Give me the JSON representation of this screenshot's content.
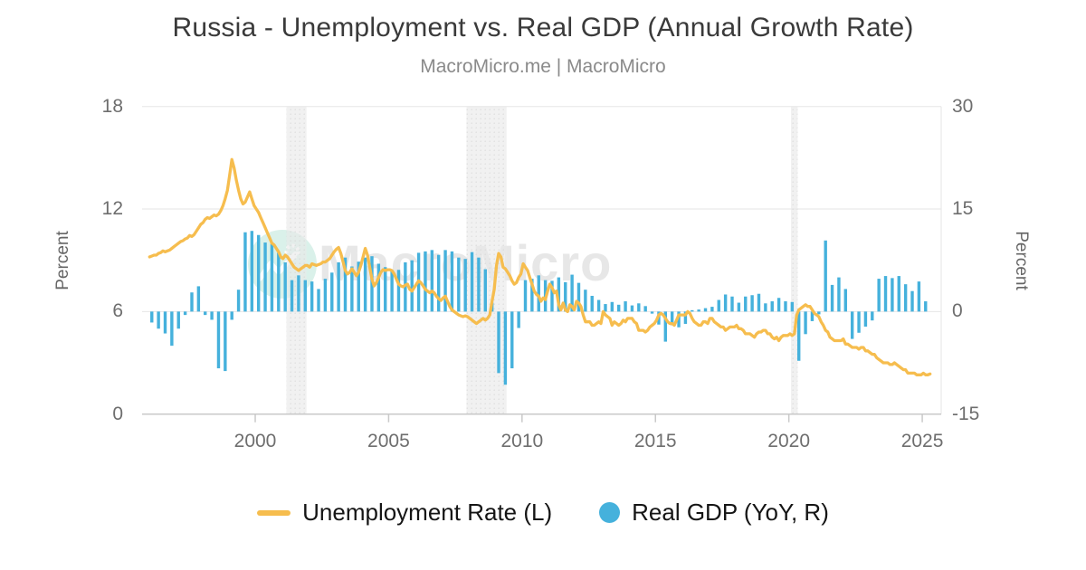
{
  "header": {
    "title": "Russia - Unemployment vs. Real GDP (Annual Growth Rate)",
    "subtitle": "MacroMicro.me | MacroMicro"
  },
  "watermark": {
    "text": "MacroMicro"
  },
  "colors": {
    "bar": "#45b1dc",
    "line": "#f6bd4e",
    "grid": "#e6e6e6",
    "axis_line": "#c9c9c9",
    "band_fill": "#e8e8e8",
    "band_dot": "#d4d4d4",
    "tick_text": "#6e6e6e",
    "title_text": "#3a3a3a",
    "subtitle_text": "#8a8a8a",
    "watermark_circle": "#daf1ea",
    "watermark_text": "#e7e7e7"
  },
  "legend": [
    {
      "label": "Unemployment Rate (L)",
      "swatch": "line",
      "color": "#f6bd4e"
    },
    {
      "label": "Real GDP (YoY, R)",
      "swatch": "circle",
      "color": "#45b1dc"
    }
  ],
  "chart_data": {
    "type": "mixed",
    "title": "Russia - Unemployment vs. Real GDP (Annual Growth Rate)",
    "x_axis": {
      "min": 1995.76,
      "max": 2025.71,
      "ticks": [
        2000,
        2005,
        2010,
        2015,
        2020,
        2025
      ]
    },
    "y_axis_left": {
      "label": "Percent",
      "min": 0,
      "max": 18,
      "ticks": [
        0,
        6,
        12,
        18
      ]
    },
    "y_axis_right": {
      "label": "Percent",
      "min": -15,
      "max": 30,
      "ticks": [
        -15,
        0,
        15,
        30
      ]
    },
    "grid": "horizontal",
    "legend_position": "bottom",
    "shaded_bands": [
      {
        "from": 2001.17,
        "to": 2001.92
      },
      {
        "from": 2007.92,
        "to": 2009.42
      },
      {
        "from": 2020.08,
        "to": 2020.33
      }
    ],
    "series": [
      {
        "name": "Unemployment Rate (L)",
        "type": "line",
        "axis": "left",
        "color": "#f6bd4e",
        "start_year": 1996,
        "points_per_year": 12,
        "values": [
          9.2,
          9.25,
          9.3,
          9.3,
          9.4,
          9.45,
          9.55,
          9.5,
          9.55,
          9.6,
          9.7,
          9.8,
          9.9,
          10.0,
          10.1,
          10.15,
          10.25,
          10.3,
          10.45,
          10.4,
          10.5,
          10.7,
          10.9,
          11.1,
          11.2,
          11.4,
          11.5,
          11.45,
          11.55,
          11.65,
          11.6,
          11.7,
          11.9,
          12.2,
          12.6,
          13.1,
          14.0,
          14.9,
          14.4,
          13.7,
          13.1,
          12.6,
          12.3,
          12.4,
          12.7,
          13.0,
          12.6,
          12.2,
          12.0,
          11.8,
          11.5,
          11.2,
          10.9,
          10.6,
          10.3,
          10.0,
          9.9,
          9.7,
          9.5,
          9.2,
          9.1,
          9.3,
          9.2,
          9.0,
          8.8,
          8.6,
          8.5,
          8.4,
          8.5,
          8.6,
          8.7,
          8.7,
          8.6,
          8.8,
          8.75,
          8.7,
          8.75,
          8.8,
          8.9,
          8.9,
          9.0,
          9.1,
          9.3,
          9.5,
          9.65,
          9.75,
          9.4,
          8.9,
          8.4,
          8.2,
          8.3,
          8.5,
          8.3,
          8.1,
          8.3,
          8.7,
          9.2,
          9.7,
          9.3,
          8.6,
          7.9,
          7.5,
          7.7,
          8.0,
          8.3,
          8.45,
          8.4,
          8.45,
          8.45,
          8.4,
          8.2,
          7.9,
          7.6,
          7.5,
          7.45,
          7.55,
          7.6,
          7.3,
          7.2,
          7.4,
          7.6,
          7.8,
          7.7,
          7.5,
          7.3,
          7.2,
          7.1,
          7.2,
          7.1,
          6.9,
          6.75,
          6.65,
          6.8,
          6.9,
          6.6,
          6.3,
          6.1,
          6.0,
          5.9,
          5.8,
          5.75,
          5.7,
          5.75,
          5.7,
          5.6,
          5.5,
          5.4,
          5.3,
          5.4,
          5.5,
          5.6,
          5.5,
          5.6,
          5.8,
          6.6,
          7.3,
          8.7,
          9.4,
          9.2,
          8.6,
          8.5,
          8.3,
          8.1,
          7.8,
          7.6,
          7.7,
          8.0,
          8.2,
          8.8,
          8.6,
          8.4,
          8.0,
          7.6,
          7.2,
          7.0,
          6.9,
          6.6,
          6.8,
          6.7,
          7.2,
          7.6,
          7.4,
          7.1,
          7.2,
          6.4,
          6.1,
          6.5,
          6.1,
          6.0,
          6.4,
          6.3,
          6.1,
          6.6,
          6.5,
          6.3,
          5.8,
          5.4,
          5.4,
          5.4,
          5.2,
          5.2,
          5.3,
          5.4,
          5.3,
          6.0,
          5.8,
          5.7,
          5.6,
          5.2,
          5.4,
          5.3,
          5.2,
          5.3,
          5.5,
          5.4,
          5.6,
          5.6,
          5.6,
          5.4,
          5.3,
          4.9,
          4.9,
          4.9,
          4.8,
          4.9,
          5.1,
          5.2,
          5.3,
          5.5,
          5.8,
          5.9,
          5.8,
          5.6,
          5.4,
          5.3,
          5.3,
          5.2,
          5.5,
          5.8,
          5.8,
          5.8,
          5.8,
          6.0,
          5.9,
          5.6,
          5.4,
          5.3,
          5.2,
          5.2,
          5.4,
          5.4,
          5.3,
          5.6,
          5.6,
          5.4,
          5.3,
          5.2,
          5.1,
          5.1,
          4.9,
          5.0,
          5.1,
          5.1,
          5.1,
          5.2,
          5.0,
          5.0,
          4.9,
          4.7,
          4.7,
          4.7,
          4.6,
          4.5,
          4.7,
          4.8,
          4.8,
          4.9,
          4.9,
          4.7,
          4.7,
          4.5,
          4.4,
          4.5,
          4.3,
          4.5,
          4.6,
          4.6,
          4.6,
          4.7,
          4.6,
          4.7,
          5.8,
          6.1,
          6.2,
          6.3,
          6.4,
          6.3,
          6.3,
          6.1,
          5.9,
          5.8,
          5.7,
          5.4,
          5.2,
          4.9,
          4.8,
          4.5,
          4.4,
          4.3,
          4.3,
          4.3,
          4.3,
          4.4,
          4.1,
          4.1,
          4.0,
          3.9,
          3.9,
          3.9,
          3.8,
          3.9,
          3.9,
          3.7,
          3.7,
          3.6,
          3.5,
          3.5,
          3.3,
          3.2,
          3.1,
          3.0,
          3.0,
          3.0,
          2.9,
          2.9,
          3.0,
          2.9,
          2.8,
          2.7,
          2.6,
          2.6,
          2.4,
          2.4,
          2.4,
          2.4,
          2.3,
          2.3,
          2.3,
          2.4,
          2.3,
          2.3,
          2.35
        ]
      },
      {
        "name": "Real GDP (YoY, R)",
        "type": "bar",
        "axis": "right",
        "color": "#45b1dc",
        "start_year": 1996,
        "points_per_year": 4,
        "values": [
          -1.6,
          -2.5,
          -3.2,
          -5.0,
          -2.5,
          -0.5,
          2.8,
          3.7,
          -0.5,
          -1.2,
          -8.3,
          -8.7,
          -1.2,
          3.2,
          11.6,
          11.8,
          11.2,
          10.1,
          9.9,
          8.6,
          7.2,
          4.6,
          5.3,
          4.6,
          4.4,
          3.3,
          4.8,
          5.7,
          7.2,
          7.9,
          6.6,
          7.3,
          7.9,
          8.1,
          7.0,
          6.5,
          5.9,
          6.1,
          7.2,
          7.5,
          8.6,
          8.8,
          9.0,
          8.3,
          9.0,
          8.8,
          7.9,
          7.7,
          8.7,
          7.9,
          6.2,
          1.3,
          -9.0,
          -10.7,
          -8.3,
          -2.4,
          4.6,
          4.8,
          5.3,
          4.6,
          4.5,
          5.0,
          4.3,
          5.4,
          4.2,
          3.2,
          2.3,
          1.7,
          1.1,
          1.4,
          1.0,
          1.5,
          0.9,
          1.2,
          0.8,
          -0.3,
          -1.9,
          -4.4,
          -2.0,
          -2.3,
          -1.8,
          0.2,
          0.3,
          0.5,
          0.7,
          1.7,
          2.5,
          2.2,
          1.3,
          2.2,
          2.4,
          2.6,
          1.2,
          1.5,
          2.0,
          1.5,
          1.4,
          -7.2,
          -3.3,
          -1.4,
          -0.4,
          10.4,
          3.9,
          5.0,
          3.3,
          -4.0,
          -3.1,
          -2.2,
          -1.3,
          4.8,
          5.2,
          4.9,
          5.2,
          4.0,
          3.0,
          4.4,
          1.5
        ]
      }
    ]
  }
}
